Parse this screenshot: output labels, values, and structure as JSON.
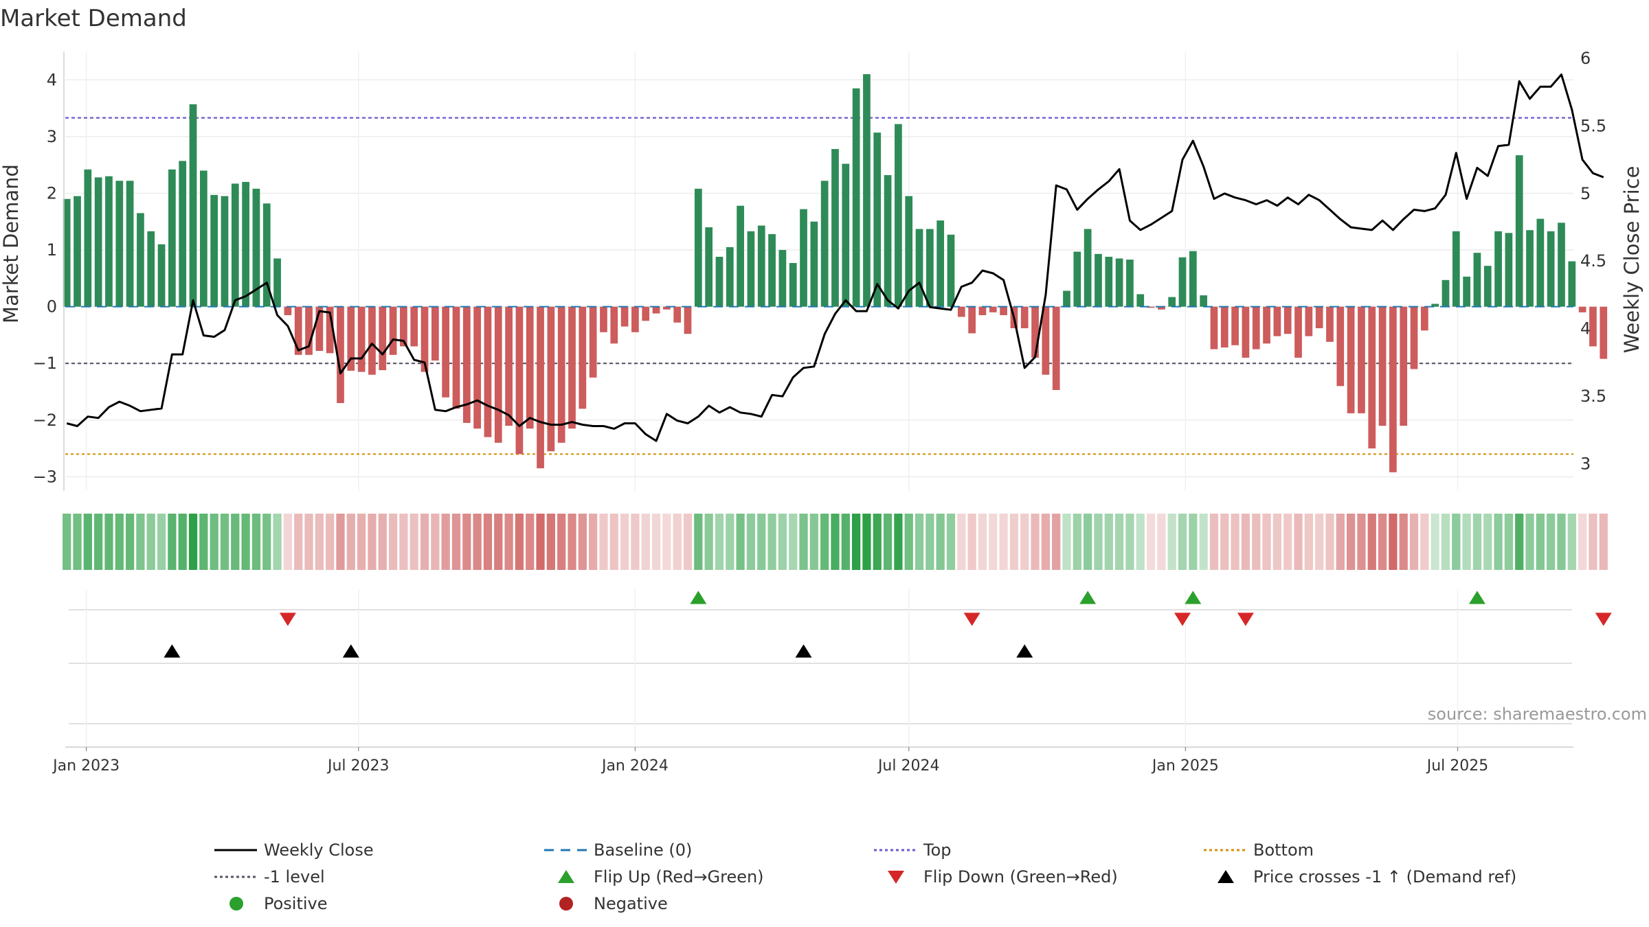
{
  "chart_data": {
    "type": "bar",
    "title": "Market Demand",
    "ylabel_left": "Market Demand",
    "ylabel_right": "Weekly Close Price",
    "ylim_left": [
      -3.25,
      4.5
    ],
    "ylim_right": [
      2.8,
      6.05
    ],
    "yticks_left": [
      4,
      3,
      2,
      1,
      0,
      -1,
      -2,
      -3
    ],
    "yticks_left_labels": [
      "4",
      "3",
      "2",
      "1",
      "0",
      "−1",
      "−2",
      "−3"
    ],
    "yticks_right": [
      6,
      5.5,
      5,
      4.5,
      4,
      3.5,
      3
    ],
    "yticks_right_labels": [
      "6",
      "5.5",
      "5",
      "4.5",
      "4",
      "3.5",
      "3"
    ],
    "x_start": "2022-12-19",
    "x_step_days": 7,
    "x_range_days": [
      -1,
      1002
    ],
    "x_ticks": [
      {
        "label": "Jan 2023",
        "day": 13
      },
      {
        "label": "Jul 2023",
        "day": 194
      },
      {
        "label": "Jan 2024",
        "day": 378
      },
      {
        "label": "Jul 2024",
        "day": 560
      },
      {
        "label": "Jan 2025",
        "day": 744
      },
      {
        "label": "Jul 2025",
        "day": 925
      }
    ],
    "demand": [
      1.9,
      1.95,
      2.42,
      2.28,
      2.3,
      2.22,
      2.22,
      1.65,
      1.33,
      1.1,
      2.42,
      2.57,
      3.57,
      2.4,
      1.97,
      1.95,
      2.17,
      2.2,
      2.08,
      1.82,
      0.85,
      -0.15,
      -0.85,
      -0.85,
      -0.78,
      -0.82,
      -1.7,
      -1.13,
      -1.15,
      -1.2,
      -1.12,
      -0.85,
      -0.7,
      -0.7,
      -1.15,
      -0.95,
      -1.6,
      -1.8,
      -2.05,
      -2.15,
      -2.3,
      -2.4,
      -2.1,
      -2.6,
      -2.15,
      -2.85,
      -2.55,
      -2.4,
      -2.15,
      -1.8,
      -1.25,
      -0.45,
      -0.65,
      -0.35,
      -0.45,
      -0.25,
      -0.12,
      -0.05,
      -0.28,
      -0.48,
      2.08,
      1.4,
      0.88,
      1.05,
      1.78,
      1.33,
      1.43,
      1.28,
      1.0,
      0.77,
      1.72,
      1.5,
      2.22,
      2.78,
      2.52,
      3.85,
      4.1,
      3.07,
      2.32,
      3.22,
      1.95,
      1.37,
      1.37,
      1.52,
      1.27,
      -0.18,
      -0.47,
      -0.15,
      -0.1,
      -0.15,
      -0.38,
      -0.38,
      -0.9,
      -1.2,
      -1.47,
      0.28,
      0.97,
      1.37,
      0.93,
      0.88,
      0.85,
      0.83,
      0.22,
      -0.02,
      -0.05,
      0.17,
      0.87,
      0.98,
      0.2,
      -0.75,
      -0.72,
      -0.68,
      -0.9,
      -0.75,
      -0.65,
      -0.52,
      -0.48,
      -0.9,
      -0.52,
      -0.38,
      -0.62,
      -1.4,
      -1.88,
      -1.88,
      -2.5,
      -2.1,
      -2.92,
      -2.1,
      -1.1,
      -0.42,
      0.05,
      0.47,
      1.33,
      0.53,
      0.95,
      0.72,
      1.33,
      1.3,
      2.67,
      1.35,
      1.55,
      1.33,
      1.48,
      0.8,
      -0.1,
      -0.7,
      -0.92
    ],
    "price": [
      3.3,
      3.28,
      3.35,
      3.34,
      3.42,
      3.46,
      3.43,
      3.39,
      3.4,
      3.41,
      3.81,
      3.81,
      4.21,
      3.95,
      3.94,
      3.99,
      4.21,
      4.24,
      4.29,
      4.34,
      4.1,
      4.02,
      3.84,
      3.87,
      4.13,
      4.12,
      3.67,
      3.78,
      3.78,
      3.89,
      3.81,
      3.92,
      3.91,
      3.77,
      3.75,
      3.4,
      3.39,
      3.42,
      3.44,
      3.47,
      3.43,
      3.4,
      3.36,
      3.28,
      3.34,
      3.31,
      3.29,
      3.29,
      3.31,
      3.29,
      3.28,
      3.28,
      3.26,
      3.3,
      3.3,
      3.22,
      3.17,
      3.37,
      3.32,
      3.3,
      3.35,
      3.43,
      3.38,
      3.42,
      3.38,
      3.37,
      3.35,
      3.51,
      3.5,
      3.64,
      3.71,
      3.72,
      3.96,
      4.11,
      4.21,
      4.13,
      4.13,
      4.33,
      4.21,
      4.15,
      4.28,
      4.34,
      4.16,
      4.15,
      4.14,
      4.31,
      4.34,
      4.43,
      4.41,
      4.36,
      4.08,
      3.71,
      3.79,
      4.25,
      5.06,
      5.03,
      4.88,
      4.96,
      5.03,
      5.09,
      5.18,
      4.8,
      4.73,
      4.77,
      4.82,
      4.87,
      5.25,
      5.39,
      5.2,
      4.96,
      5.0,
      4.97,
      4.95,
      4.92,
      4.95,
      4.91,
      4.97,
      4.92,
      4.99,
      4.95,
      4.88,
      4.81,
      4.75,
      4.74,
      4.73,
      4.8,
      4.73,
      4.81,
      4.88,
      4.87,
      4.89,
      4.99,
      5.3,
      4.96,
      5.19,
      5.13,
      5.35,
      5.36,
      5.83,
      5.7,
      5.79,
      5.79,
      5.88,
      5.62,
      5.25,
      5.15,
      5.12
    ],
    "levels": {
      "top": 3.33,
      "minus_one": -1,
      "bottom": -2.6,
      "baseline": 0
    },
    "flip_up_weeks": [
      60,
      97,
      107,
      134
    ],
    "flip_down_weeks": [
      21,
      86,
      106,
      112,
      146
    ],
    "price_cross_weeks": [
      10,
      27,
      70,
      91
    ],
    "source": "source: sharemaestro.com",
    "colors": {
      "positive_bar": "#2e8b57",
      "negative_bar": "#cd5c5c",
      "price_line": "#000000",
      "baseline": "#1f77b4",
      "top_line": "#6a5acd",
      "minus_one_line": "#555566",
      "bottom_line": "#d4900a",
      "flip_up": "#2ca02c",
      "flip_down": "#d62728",
      "cross": "#000000",
      "positive_dot": "#2ca02c",
      "negative_dot": "#b22222"
    },
    "legend": [
      {
        "label": "Weekly Close",
        "kind": "solid-line",
        "color": "#000000"
      },
      {
        "label": "Baseline (0)",
        "kind": "dashed-line",
        "color": "#1f77b4"
      },
      {
        "label": "Top",
        "kind": "dotted-line",
        "color": "#6a5acd"
      },
      {
        "label": "Bottom",
        "kind": "dotted-line",
        "color": "#d4900a"
      },
      {
        "label": "-1 level",
        "kind": "dotted-line",
        "color": "#555566"
      },
      {
        "label": "Flip Up (Red→Green)",
        "kind": "triangle-up",
        "color": "#2ca02c"
      },
      {
        "label": "Flip Down (Green→Red)",
        "kind": "triangle-down",
        "color": "#d62728"
      },
      {
        "label": "Price crosses -1 ↑ (Demand ref)",
        "kind": "triangle-up",
        "color": "#000000"
      },
      {
        "label": "Positive",
        "kind": "dot",
        "color": "#2ca02c"
      },
      {
        "label": "Negative",
        "kind": "dot",
        "color": "#b22222"
      }
    ]
  }
}
